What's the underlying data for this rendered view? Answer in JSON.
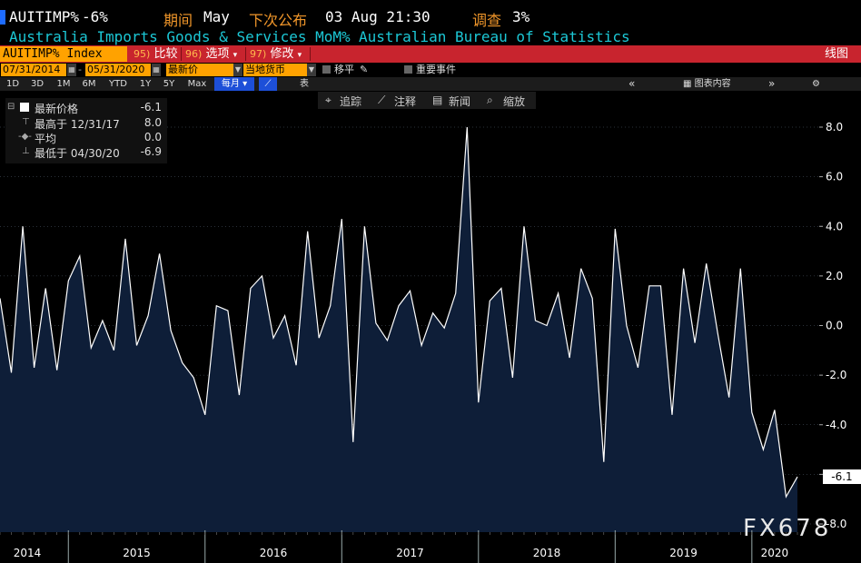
{
  "header": {
    "ticker": "AUITIMP%",
    "last_change": "-6%",
    "period_label": "期间",
    "period_value": "May",
    "next_release_label": "下次公布",
    "next_release_value": "03 Aug 21:30",
    "survey_label": "调查",
    "survey_value": "3%",
    "description": "Australia Imports Goods & Services MoM%",
    "source": "Australian Bureau of Statistics"
  },
  "toolbar": {
    "security": "AUITIMP% Index",
    "compare_num": "95)",
    "compare_label": "比较",
    "options_num": "96)",
    "options_label": "选项",
    "edit_num": "97)",
    "edit_label": "修改",
    "chart_type": "线图"
  },
  "daterow": {
    "start_date": "07/31/2014",
    "end_date": "05/31/2020",
    "price_field": "最新价",
    "currency": "当地货币",
    "move_label": "移平",
    "events_label": "重要事件"
  },
  "range": {
    "buttons": [
      "1D",
      "3D",
      "1M",
      "6M",
      "YTD",
      "1Y",
      "5Y",
      "Max"
    ],
    "frequency": "每月",
    "table_label": "表",
    "chart_content": "图表内容"
  },
  "chart_tools": {
    "track": "追踪",
    "annotate": "注释",
    "news": "新闻",
    "zoom": "缩放"
  },
  "legend": {
    "last_label": "最新价格",
    "last_value": "-6.1",
    "high_label": "最高于 12/31/17",
    "high_value": "8.0",
    "avg_label": "平均",
    "avg_value": "0.0",
    "low_label": "最低于 04/30/20",
    "low_value": "-6.9"
  },
  "last_tag": "-6.1",
  "watermark": "FX678",
  "colors": {
    "line": "#ffffff",
    "area": "#0e1e38",
    "grid": "#556070",
    "axis_text": "#ffffff"
  },
  "chart_data": {
    "type": "area",
    "title": "",
    "xlabel": "",
    "ylabel": "",
    "ylim": [
      -8.0,
      9.0
    ],
    "yticks": [
      8.0,
      6.0,
      4.0,
      2.0,
      0.0,
      -2.0,
      -4.0,
      -6.0,
      -8.0
    ],
    "ytick_labels": [
      "8.0",
      "6.0",
      "4.0",
      "2.0",
      "0.0",
      "-2.0",
      "-4.0",
      "-6.0",
      "-8.0"
    ],
    "year_labels": [
      "2014",
      "2015",
      "2016",
      "2017",
      "2018",
      "2019",
      "2020"
    ],
    "x_start": "2014-07",
    "x_end": "2020-05",
    "dates": [
      "2014-07",
      "2014-08",
      "2014-09",
      "2014-10",
      "2014-11",
      "2014-12",
      "2015-01",
      "2015-02",
      "2015-03",
      "2015-04",
      "2015-05",
      "2015-06",
      "2015-07",
      "2015-08",
      "2015-09",
      "2015-10",
      "2015-11",
      "2015-12",
      "2016-01",
      "2016-02",
      "2016-03",
      "2016-04",
      "2016-05",
      "2016-06",
      "2016-07",
      "2016-08",
      "2016-09",
      "2016-10",
      "2016-11",
      "2016-12",
      "2017-01",
      "2017-02",
      "2017-03",
      "2017-04",
      "2017-05",
      "2017-06",
      "2017-07",
      "2017-08",
      "2017-09",
      "2017-10",
      "2017-11",
      "2017-12",
      "2018-01",
      "2018-02",
      "2018-03",
      "2018-04",
      "2018-05",
      "2018-06",
      "2018-07",
      "2018-08",
      "2018-09",
      "2018-10",
      "2018-11",
      "2018-12",
      "2019-01",
      "2019-02",
      "2019-03",
      "2019-04",
      "2019-05",
      "2019-06",
      "2019-07",
      "2019-08",
      "2019-09",
      "2019-10",
      "2019-11",
      "2019-12",
      "2020-01",
      "2020-02",
      "2020-03",
      "2020-04",
      "2020-05"
    ],
    "series": [
      {
        "values": [
          1.1,
          -1.9,
          4.0,
          -1.7,
          1.5,
          -1.8,
          1.8,
          2.8,
          -0.9,
          0.2,
          -1.0,
          3.5,
          -0.8,
          0.4,
          2.9,
          -0.2,
          -1.5,
          -2.1,
          -3.6,
          0.8,
          0.6,
          -2.8,
          1.5,
          2.0,
          -0.5,
          0.4,
          -1.6,
          3.8,
          -0.5,
          0.8,
          4.3,
          -4.7,
          4.0,
          0.1,
          -0.6,
          0.8,
          1.4,
          -0.8,
          0.5,
          -0.1,
          1.3,
          8.0,
          -3.1,
          1.0,
          1.5,
          -2.1,
          4.0,
          0.2,
          0.0,
          1.3,
          -1.3,
          2.3,
          1.1,
          -5.5,
          3.9,
          0.0,
          -1.7,
          1.6,
          1.6,
          -3.6,
          2.3,
          -0.7,
          2.5,
          -0.3,
          -2.9,
          2.3,
          -3.5,
          -5.0,
          -3.4,
          -6.9,
          -6.1
        ]
      }
    ],
    "grid": true,
    "legend_position": "top-left"
  }
}
